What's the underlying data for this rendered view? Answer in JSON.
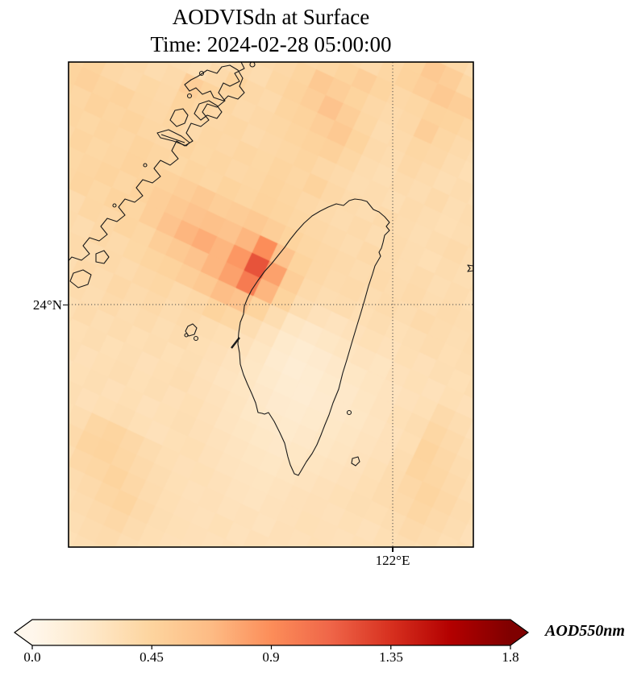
{
  "title": {
    "line1": "AODVISdn at Surface",
    "line2": "Time: 2024-02-28 05:00:00"
  },
  "map": {
    "y_tick_label": "24°N",
    "x_tick_label": "122°E",
    "border_color": "#000000",
    "coastline_color": "#1a1a1a",
    "gridline_color": "#4d4d4d"
  },
  "colorbar": {
    "label": "AOD550nm",
    "tick_labels": [
      "0.0",
      "0.45",
      "0.9",
      "1.35",
      "1.8"
    ]
  },
  "chart_data": {
    "type": "heatmap",
    "title": "AODVISdn at Surface",
    "time": "2024-02-28 05:00:00",
    "variable": "AODVISdn",
    "colorbar_label": "AOD550nm",
    "value_range": [
      0.0,
      1.8
    ],
    "colorbar_ticks": [
      0.0,
      0.45,
      0.9,
      1.35,
      1.8
    ],
    "colorbar_extend": "both",
    "gridlines": {
      "lat": "24°N",
      "lon": "122°E"
    },
    "colormap": {
      "name": "OrRd",
      "stops": [
        [
          0.0,
          "#fff7ec"
        ],
        [
          0.125,
          "#fee8c8"
        ],
        [
          0.25,
          "#fdd49e"
        ],
        [
          0.375,
          "#fdbb84"
        ],
        [
          0.5,
          "#fc8d59"
        ],
        [
          0.625,
          "#ef6548"
        ],
        [
          0.75,
          "#d7301f"
        ],
        [
          0.875,
          "#b30000"
        ],
        [
          1.0,
          "#7f0000"
        ]
      ]
    },
    "heatmap": {
      "rows": 32,
      "cols": 30,
      "cell_size_px": 24,
      "rotation_deg": 25,
      "values": [
        [
          0.32,
          0.3,
          0.31,
          0.33,
          0.3,
          0.32,
          0.34,
          0.31,
          0.3,
          0.32,
          0.33,
          0.35,
          0.32,
          0.34,
          0.36,
          0.35,
          0.38,
          0.42,
          0.4,
          0.36,
          0.34,
          0.32,
          0.35,
          0.38,
          0.36,
          0.33,
          0.3,
          0.32,
          0.34,
          0.31
        ],
        [
          0.3,
          0.32,
          0.34,
          0.31,
          0.33,
          0.3,
          0.32,
          0.35,
          0.33,
          0.31,
          0.34,
          0.36,
          0.38,
          0.35,
          0.37,
          0.4,
          0.45,
          0.55,
          0.5,
          0.42,
          0.38,
          0.36,
          0.4,
          0.44,
          0.4,
          0.36,
          0.33,
          0.3,
          0.32,
          0.34
        ],
        [
          0.33,
          0.31,
          0.3,
          0.34,
          0.32,
          0.35,
          0.31,
          0.33,
          0.36,
          0.34,
          0.32,
          0.35,
          0.37,
          0.4,
          0.38,
          0.42,
          0.46,
          0.5,
          0.55,
          0.5,
          0.5,
          0.44,
          0.38,
          0.4,
          0.45,
          0.38,
          0.34,
          0.32,
          0.3,
          0.33
        ],
        [
          0.31,
          0.34,
          0.32,
          0.3,
          0.35,
          0.33,
          0.36,
          0.34,
          0.31,
          0.36,
          0.38,
          0.4,
          0.42,
          0.45,
          0.5,
          0.44,
          0.4,
          0.42,
          0.46,
          0.45,
          0.42,
          0.38,
          0.35,
          0.36,
          0.4,
          0.42,
          0.36,
          0.33,
          0.35,
          0.3
        ],
        [
          0.34,
          0.32,
          0.35,
          0.33,
          0.31,
          0.36,
          0.34,
          0.37,
          0.35,
          0.38,
          0.4,
          0.44,
          0.55,
          0.5,
          0.45,
          0.4,
          0.38,
          0.4,
          0.5,
          0.42,
          0.38,
          0.35,
          0.33,
          0.34,
          0.36,
          0.38,
          0.34,
          0.31,
          0.33,
          0.35
        ],
        [
          0.32,
          0.35,
          0.33,
          0.36,
          0.34,
          0.32,
          0.37,
          0.35,
          0.38,
          0.36,
          0.42,
          0.46,
          0.5,
          0.6,
          0.5,
          0.42,
          0.36,
          0.38,
          0.42,
          0.4,
          0.36,
          0.33,
          0.35,
          0.32,
          0.34,
          0.3,
          0.36,
          0.34,
          0.31,
          0.33
        ],
        [
          0.35,
          0.33,
          0.36,
          0.34,
          0.37,
          0.35,
          0.33,
          0.38,
          0.45,
          0.4,
          0.38,
          0.44,
          0.46,
          0.5,
          0.55,
          0.45,
          0.38,
          0.36,
          0.4,
          0.37,
          0.34,
          0.36,
          0.33,
          0.35,
          0.31,
          0.33,
          0.35,
          0.32,
          0.34,
          0.36
        ],
        [
          0.38,
          0.4,
          0.37,
          0.39,
          0.36,
          0.38,
          0.5,
          0.45,
          0.42,
          0.38,
          0.4,
          0.42,
          0.44,
          0.46,
          0.48,
          0.42,
          0.36,
          0.34,
          0.37,
          0.35,
          0.38,
          0.34,
          0.36,
          0.33,
          0.35,
          0.32,
          0.34,
          0.36,
          0.33,
          0.31
        ],
        [
          0.42,
          0.45,
          0.4,
          0.38,
          0.41,
          0.39,
          0.45,
          0.42,
          0.4,
          0.42,
          0.38,
          0.4,
          0.42,
          0.44,
          0.4,
          0.38,
          0.35,
          0.36,
          0.34,
          0.37,
          0.35,
          0.33,
          0.35,
          0.37,
          0.34,
          0.36,
          0.33,
          0.31,
          0.35,
          0.34
        ],
        [
          0.45,
          0.48,
          0.44,
          0.46,
          0.42,
          0.4,
          0.43,
          0.38,
          0.42,
          0.4,
          0.43,
          0.41,
          0.44,
          0.42,
          0.46,
          0.4,
          0.37,
          0.35,
          0.38,
          0.36,
          0.34,
          0.36,
          0.38,
          0.35,
          0.33,
          0.35,
          0.37,
          0.34,
          0.32,
          0.36
        ],
        [
          0.44,
          0.42,
          0.46,
          0.43,
          0.45,
          0.42,
          0.4,
          0.44,
          0.41,
          0.43,
          0.4,
          0.42,
          0.45,
          0.43,
          0.4,
          0.38,
          0.36,
          0.38,
          0.35,
          0.37,
          0.35,
          0.33,
          0.36,
          0.34,
          0.37,
          0.35,
          0.33,
          0.36,
          0.34,
          0.32
        ],
        [
          0.4,
          0.43,
          0.41,
          0.44,
          0.42,
          0.45,
          0.43,
          0.41,
          0.44,
          0.42,
          0.45,
          0.43,
          0.46,
          0.44,
          0.42,
          0.4,
          0.38,
          0.36,
          0.39,
          0.37,
          0.35,
          0.37,
          0.34,
          0.36,
          0.33,
          0.35,
          0.38,
          0.35,
          0.33,
          0.36
        ],
        [
          0.42,
          0.4,
          0.44,
          0.41,
          0.43,
          0.46,
          0.44,
          0.47,
          0.5,
          0.55,
          0.5,
          0.52,
          0.55,
          0.5,
          0.45,
          0.42,
          0.4,
          0.38,
          0.36,
          0.38,
          0.36,
          0.38,
          0.35,
          0.37,
          0.35,
          0.33,
          0.35,
          0.37,
          0.36,
          0.34
        ],
        [
          0.4,
          0.42,
          0.41,
          0.43,
          0.45,
          0.42,
          0.46,
          0.5,
          0.55,
          0.6,
          0.62,
          0.6,
          0.7,
          0.9,
          0.6,
          0.45,
          0.4,
          0.37,
          0.38,
          0.35,
          0.37,
          0.35,
          0.38,
          0.36,
          0.34,
          0.36,
          0.33,
          0.35,
          0.34,
          0.37
        ],
        [
          0.38,
          0.4,
          0.42,
          0.44,
          0.41,
          0.45,
          0.43,
          0.5,
          0.6,
          0.7,
          0.75,
          0.7,
          0.85,
          1.2,
          0.8,
          0.5,
          0.38,
          0.35,
          0.36,
          0.33,
          0.35,
          0.32,
          0.34,
          0.36,
          0.33,
          0.35,
          0.37,
          0.34,
          0.36,
          0.33
        ],
        [
          0.36,
          0.38,
          0.4,
          0.37,
          0.42,
          0.4,
          0.44,
          0.42,
          0.5,
          0.55,
          0.6,
          0.7,
          0.8,
          1.0,
          0.7,
          0.45,
          0.35,
          0.3,
          0.28,
          0.3,
          0.32,
          0.3,
          0.33,
          0.31,
          0.34,
          0.32,
          0.35,
          0.33,
          0.31,
          0.35
        ],
        [
          0.34,
          0.36,
          0.35,
          0.38,
          0.36,
          0.4,
          0.38,
          0.41,
          0.44,
          0.46,
          0.5,
          0.55,
          0.65,
          0.6,
          0.45,
          0.35,
          0.25,
          0.22,
          0.24,
          0.26,
          0.28,
          0.26,
          0.3,
          0.32,
          0.3,
          0.33,
          0.31,
          0.34,
          0.32,
          0.3
        ],
        [
          0.33,
          0.35,
          0.37,
          0.34,
          0.38,
          0.36,
          0.39,
          0.37,
          0.4,
          0.42,
          0.38,
          0.4,
          0.45,
          0.42,
          0.35,
          0.28,
          0.2,
          0.17,
          0.19,
          0.22,
          0.24,
          0.26,
          0.28,
          0.3,
          0.32,
          0.38,
          0.35,
          0.31,
          0.33,
          0.35
        ],
        [
          0.35,
          0.33,
          0.36,
          0.38,
          0.35,
          0.39,
          0.36,
          0.4,
          0.37,
          0.39,
          0.36,
          0.38,
          0.35,
          0.33,
          0.3,
          0.25,
          0.18,
          0.15,
          0.17,
          0.2,
          0.22,
          0.25,
          0.28,
          0.32,
          0.35,
          0.42,
          0.38,
          0.34,
          0.31,
          0.33
        ],
        [
          0.32,
          0.35,
          0.33,
          0.36,
          0.34,
          0.37,
          0.35,
          0.38,
          0.35,
          0.37,
          0.34,
          0.36,
          0.33,
          0.31,
          0.28,
          0.24,
          0.2,
          0.17,
          0.16,
          0.19,
          0.22,
          0.24,
          0.27,
          0.3,
          0.33,
          0.45,
          0.4,
          0.36,
          0.33,
          0.3
        ],
        [
          0.34,
          0.32,
          0.35,
          0.33,
          0.36,
          0.34,
          0.37,
          0.34,
          0.36,
          0.33,
          0.35,
          0.32,
          0.34,
          0.3,
          0.27,
          0.25,
          0.22,
          0.19,
          0.18,
          0.2,
          0.23,
          0.25,
          0.28,
          0.3,
          0.35,
          0.44,
          0.42,
          0.38,
          0.34,
          0.32
        ],
        [
          0.31,
          0.34,
          0.32,
          0.35,
          0.33,
          0.36,
          0.33,
          0.35,
          0.32,
          0.34,
          0.31,
          0.33,
          0.35,
          0.31,
          0.29,
          0.26,
          0.23,
          0.21,
          0.2,
          0.22,
          0.24,
          0.26,
          0.29,
          0.32,
          0.36,
          0.4,
          0.44,
          0.4,
          0.36,
          0.33
        ],
        [
          0.33,
          0.31,
          0.34,
          0.32,
          0.35,
          0.32,
          0.34,
          0.31,
          0.33,
          0.35,
          0.32,
          0.34,
          0.31,
          0.33,
          0.3,
          0.27,
          0.25,
          0.23,
          0.22,
          0.24,
          0.26,
          0.28,
          0.3,
          0.33,
          0.36,
          0.38,
          0.42,
          0.38,
          0.35,
          0.31
        ],
        [
          0.3,
          0.33,
          0.31,
          0.34,
          0.31,
          0.33,
          0.3,
          0.32,
          0.34,
          0.31,
          0.33,
          0.3,
          0.32,
          0.34,
          0.31,
          0.29,
          0.27,
          0.25,
          0.24,
          0.26,
          0.28,
          0.3,
          0.32,
          0.34,
          0.33,
          0.35,
          0.38,
          0.36,
          0.33,
          0.35
        ],
        [
          0.32,
          0.3,
          0.33,
          0.31,
          0.33,
          0.3,
          0.32,
          0.34,
          0.31,
          0.33,
          0.35,
          0.32,
          0.3,
          0.32,
          0.33,
          0.3,
          0.28,
          0.27,
          0.26,
          0.28,
          0.3,
          0.31,
          0.3,
          0.32,
          0.3,
          0.33,
          0.35,
          0.33,
          0.31,
          0.34
        ],
        [
          0.31,
          0.33,
          0.3,
          0.32,
          0.3,
          0.33,
          0.31,
          0.33,
          0.35,
          0.42,
          0.44,
          0.4,
          0.36,
          0.33,
          0.31,
          0.32,
          0.3,
          0.28,
          0.27,
          0.29,
          0.3,
          0.32,
          0.31,
          0.3,
          0.32,
          0.31,
          0.33,
          0.31,
          0.34,
          0.32
        ],
        [
          0.33,
          0.3,
          0.32,
          0.31,
          0.33,
          0.31,
          0.34,
          0.32,
          0.38,
          0.44,
          0.45,
          0.42,
          0.38,
          0.35,
          0.32,
          0.3,
          0.31,
          0.29,
          0.3,
          0.28,
          0.31,
          0.3,
          0.32,
          0.31,
          0.3,
          0.33,
          0.31,
          0.34,
          0.32,
          0.3
        ],
        [
          0.3,
          0.32,
          0.31,
          0.33,
          0.3,
          0.32,
          0.3,
          0.33,
          0.35,
          0.4,
          0.42,
          0.45,
          0.4,
          0.36,
          0.33,
          0.31,
          0.3,
          0.32,
          0.29,
          0.31,
          0.3,
          0.32,
          0.3,
          0.33,
          0.31,
          0.3,
          0.32,
          0.3,
          0.33,
          0.31
        ],
        [
          0.32,
          0.3,
          0.33,
          0.3,
          0.32,
          0.31,
          0.33,
          0.31,
          0.34,
          0.36,
          0.38,
          0.42,
          0.44,
          0.38,
          0.34,
          0.32,
          0.31,
          0.3,
          0.31,
          0.29,
          0.31,
          0.3,
          0.32,
          0.3,
          0.32,
          0.31,
          0.33,
          0.31,
          0.3,
          0.32
        ],
        [
          0.3,
          0.31,
          0.3,
          0.32,
          0.31,
          0.33,
          0.3,
          0.32,
          0.31,
          0.34,
          0.36,
          0.38,
          0.4,
          0.36,
          0.33,
          0.31,
          0.3,
          0.31,
          0.29,
          0.3,
          0.32,
          0.31,
          0.3,
          0.32,
          0.3,
          0.33,
          0.3,
          0.32,
          0.31,
          0.33
        ],
        [
          0.31,
          0.3,
          0.32,
          0.3,
          0.31,
          0.3,
          0.32,
          0.31,
          0.33,
          0.32,
          0.34,
          0.36,
          0.37,
          0.34,
          0.32,
          0.3,
          0.31,
          0.3,
          0.3,
          0.31,
          0.3,
          0.32,
          0.31,
          0.3,
          0.32,
          0.3,
          0.31,
          0.3,
          0.32,
          0.3
        ],
        [
          0.3,
          0.32,
          0.3,
          0.31,
          0.3,
          0.32,
          0.3,
          0.31,
          0.3,
          0.33,
          0.32,
          0.34,
          0.35,
          0.33,
          0.31,
          0.32,
          0.3,
          0.31,
          0.3,
          0.3,
          0.31,
          0.3,
          0.32,
          0.31,
          0.3,
          0.31,
          0.3,
          0.32,
          0.3,
          0.31
        ]
      ]
    }
  }
}
